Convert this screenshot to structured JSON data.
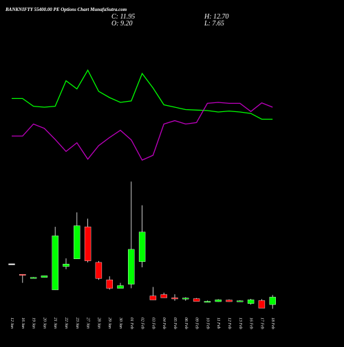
{
  "header": {
    "title": "BANKNIFTY 55400.00 PE Options Chart MunafaSutra.com",
    "close": "C: 11.95",
    "open": "O: 9.20",
    "high": "H: 12.70",
    "low": "L: 7.65"
  },
  "colors": {
    "background": "#000000",
    "up": "#00ff00",
    "down": "#ff0000",
    "neutral": "#ffffff",
    "line_green": "#00ff00",
    "line_magenta": "#c000c0",
    "text": "#ffffff"
  },
  "chart_data": [
    {
      "type": "candlestick",
      "title": "BANKNIFTY 55400.00 PE Options Chart MunafaSutra.com",
      "categories": [
        "12 Jan",
        "16 Jan",
        "19 Jan",
        "20 Jan",
        "21 Jan",
        "22 Jan",
        "23 Jan",
        "27 Jan",
        "28 Jan",
        "29 Jan",
        "30 Jan",
        "01 Feb",
        "02 Feb",
        "03 Feb",
        "04 Feb",
        "05 Feb",
        "06 Feb",
        "09 Feb",
        "10 Feb",
        "11 Feb",
        "12 Feb",
        "13 Feb",
        "16 Feb",
        "17 Feb",
        "18 Feb"
      ],
      "ohlc": [
        [
          24.2,
          24.2,
          24.2,
          24.2
        ],
        [
          20.3,
          20.4,
          17.2,
          20.0
        ],
        [
          19.0,
          19.3,
          19.0,
          19.2
        ],
        [
          19.2,
          19.8,
          19.2,
          19.8
        ],
        [
          14.6,
          37.8,
          14.6,
          34.5
        ],
        [
          23.2,
          26.2,
          22.2,
          24.1
        ],
        [
          26.0,
          43.1,
          26.0,
          38.2
        ],
        [
          37.8,
          40.8,
          24.7,
          25.3
        ],
        [
          24.7,
          25.2,
          18.3,
          18.8
        ],
        [
          18.3,
          19.6,
          14.7,
          15.2
        ],
        [
          15.2,
          17.2,
          15.2,
          16.2
        ],
        [
          16.7,
          54.4,
          15.2,
          29.5
        ],
        [
          25.0,
          45.7,
          22.9,
          35.9
        ],
        [
          12.4,
          15.7,
          10.9,
          10.9
        ],
        [
          12.9,
          13.6,
          11.7,
          11.7
        ],
        [
          11.7,
          13.0,
          10.6,
          11.3
        ],
        [
          11.5,
          11.9,
          10.6,
          11.6
        ],
        [
          11.4,
          11.6,
          10.4,
          10.4
        ],
        [
          10.3,
          10.7,
          10.2,
          10.4
        ],
        [
          10.3,
          11.2,
          10.2,
          11.0
        ],
        [
          10.9,
          11.1,
          10.2,
          10.3
        ],
        [
          10.4,
          10.8,
          10.2,
          10.6
        ],
        [
          9.6,
          11.3,
          9.2,
          11.0
        ],
        [
          10.7,
          11.2,
          7.9,
          7.9
        ],
        [
          9.2,
          12.7,
          7.65,
          11.95
        ]
      ],
      "ylim": [
        7.0,
        56.0
      ]
    },
    {
      "type": "line",
      "series": [
        {
          "color": "#00ff00",
          "values": [
            62,
            62,
            78,
            80,
            78,
            25,
            42,
            3,
            47,
            60,
            70,
            67,
            10,
            40,
            75,
            80,
            85,
            86,
            87,
            90,
            88,
            90,
            93,
            105,
            105
          ]
        },
        {
          "color": "#c000c0",
          "values": [
            140,
            140,
            115,
            124,
            147,
            172,
            154,
            188,
            160,
            143,
            128,
            148,
            190,
            180,
            115,
            108,
            115,
            112,
            72,
            70,
            72,
            72,
            89,
            71,
            80
          ]
        }
      ],
      "ylim": [
        0,
        200
      ]
    }
  ]
}
